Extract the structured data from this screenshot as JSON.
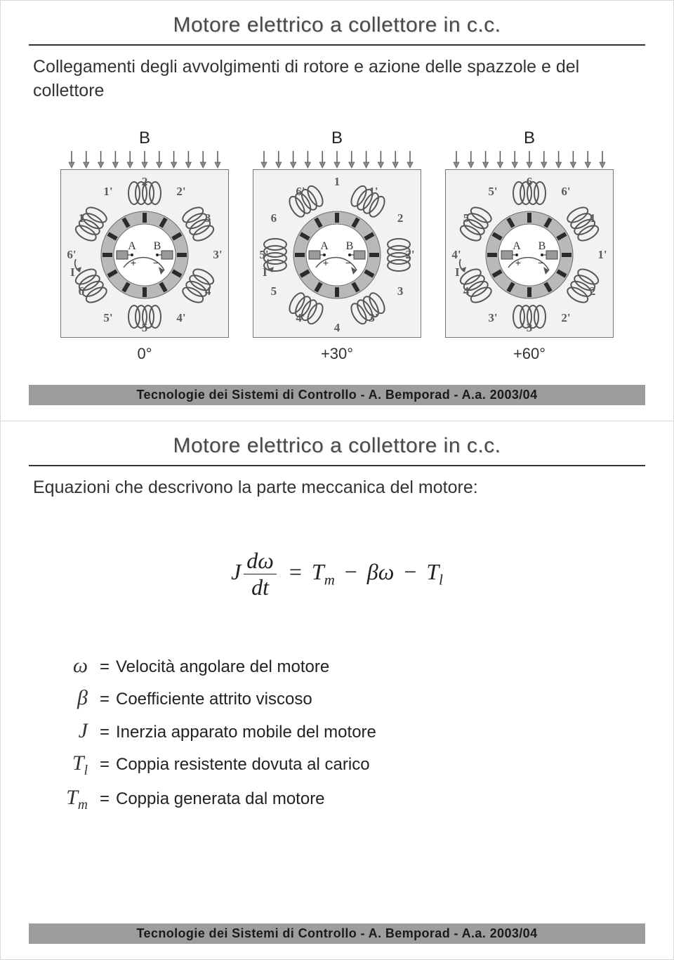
{
  "slide1": {
    "title": "Motore elettrico a collettore in c.c.",
    "subtitle": "Collegamenti degli avvolgimenti di rotore e azione delle spazzole e del collettore",
    "diagrams": [
      {
        "field_label": "B",
        "angle_label": "0°"
      },
      {
        "field_label": "B",
        "angle_label": "+30°"
      },
      {
        "field_label": "B",
        "angle_label": "+60°"
      }
    ],
    "footer": "Tecnologie dei Sistemi di Controllo - A. Bemporad - A.a. 2003/04"
  },
  "slide2": {
    "title": "Motore elettrico a collettore in c.c.",
    "subtitle": "Equazioni che descrivono la parte meccanica del motore:",
    "equation": {
      "lhs_J": "J",
      "frac_num": "dω",
      "frac_den": "dt",
      "eq": "=",
      "T_m": "T",
      "T_m_sub": "m",
      "minus1": "−",
      "beta": "β",
      "omega": "ω",
      "minus2": "−",
      "T_l": "T",
      "T_l_sub": "l"
    },
    "definitions": [
      {
        "symbol_html": "ω",
        "desc": "Velocità angolare del motore"
      },
      {
        "symbol_html": "β",
        "desc": "Coefficiente attrito viscoso"
      },
      {
        "symbol_html": "J",
        "desc": "Inerzia apparato mobile del motore"
      },
      {
        "symbol_html": "T_l",
        "desc": "Coppia resistente dovuta al carico"
      },
      {
        "symbol_html": "T_m",
        "desc": "Coppia generata dal motore"
      }
    ],
    "footer": "Tecnologie dei Sistemi di Controllo - A. Bemporad - A.a. 2003/04"
  },
  "diagram_style": {
    "box_size": 240,
    "box_fill": "#f2f2f2",
    "box_stroke": "#777",
    "arrow_color": "#8b8b8b",
    "arrow_stroke": "#555",
    "ring_outer": "#b9b9b9",
    "ring_inner": "#ffffff",
    "segment_fill": "#2b2b2b",
    "coil_stroke": "#565656",
    "label_color": "#5b5b5b",
    "brush_fill": "#9a9a9a",
    "num_coils": 6,
    "num_arrows": 11,
    "rotor_labels_0": [
      "2",
      "2'",
      "3",
      "3'",
      "4",
      "4'",
      "5",
      "5'",
      "6",
      "6'",
      "1",
      "1'"
    ],
    "rotor_labels_30": [
      "1'",
      "2",
      "2'",
      "3",
      "3'",
      "4",
      "4'",
      "5",
      "5'",
      "6",
      "6'",
      "1"
    ],
    "rotor_labels_60": [
      "1",
      "1'",
      "2",
      "2'",
      "3",
      "3'",
      "4",
      "4'",
      "5",
      "5'",
      "6",
      "6'"
    ],
    "brush_labels": [
      "A",
      "B"
    ],
    "brush_signs": [
      "+",
      "−"
    ],
    "arc_label": "I"
  },
  "colors": {
    "page_bg": "#ffffff",
    "title_color": "#4a4a4a",
    "title_shadow": "#cfcfcf",
    "rule_color": "#333333",
    "body_text": "#222222",
    "footer_bg": "#9d9d9d",
    "footer_text": "#1a1a1a"
  },
  "typography": {
    "title_fontsize": 30,
    "subtitle_fontsize": 25,
    "angle_fontsize": 22,
    "footer_fontsize": 18,
    "equation_fontsize": 32,
    "defs_symbol_fontsize": 30,
    "defs_desc_fontsize": 24
  }
}
